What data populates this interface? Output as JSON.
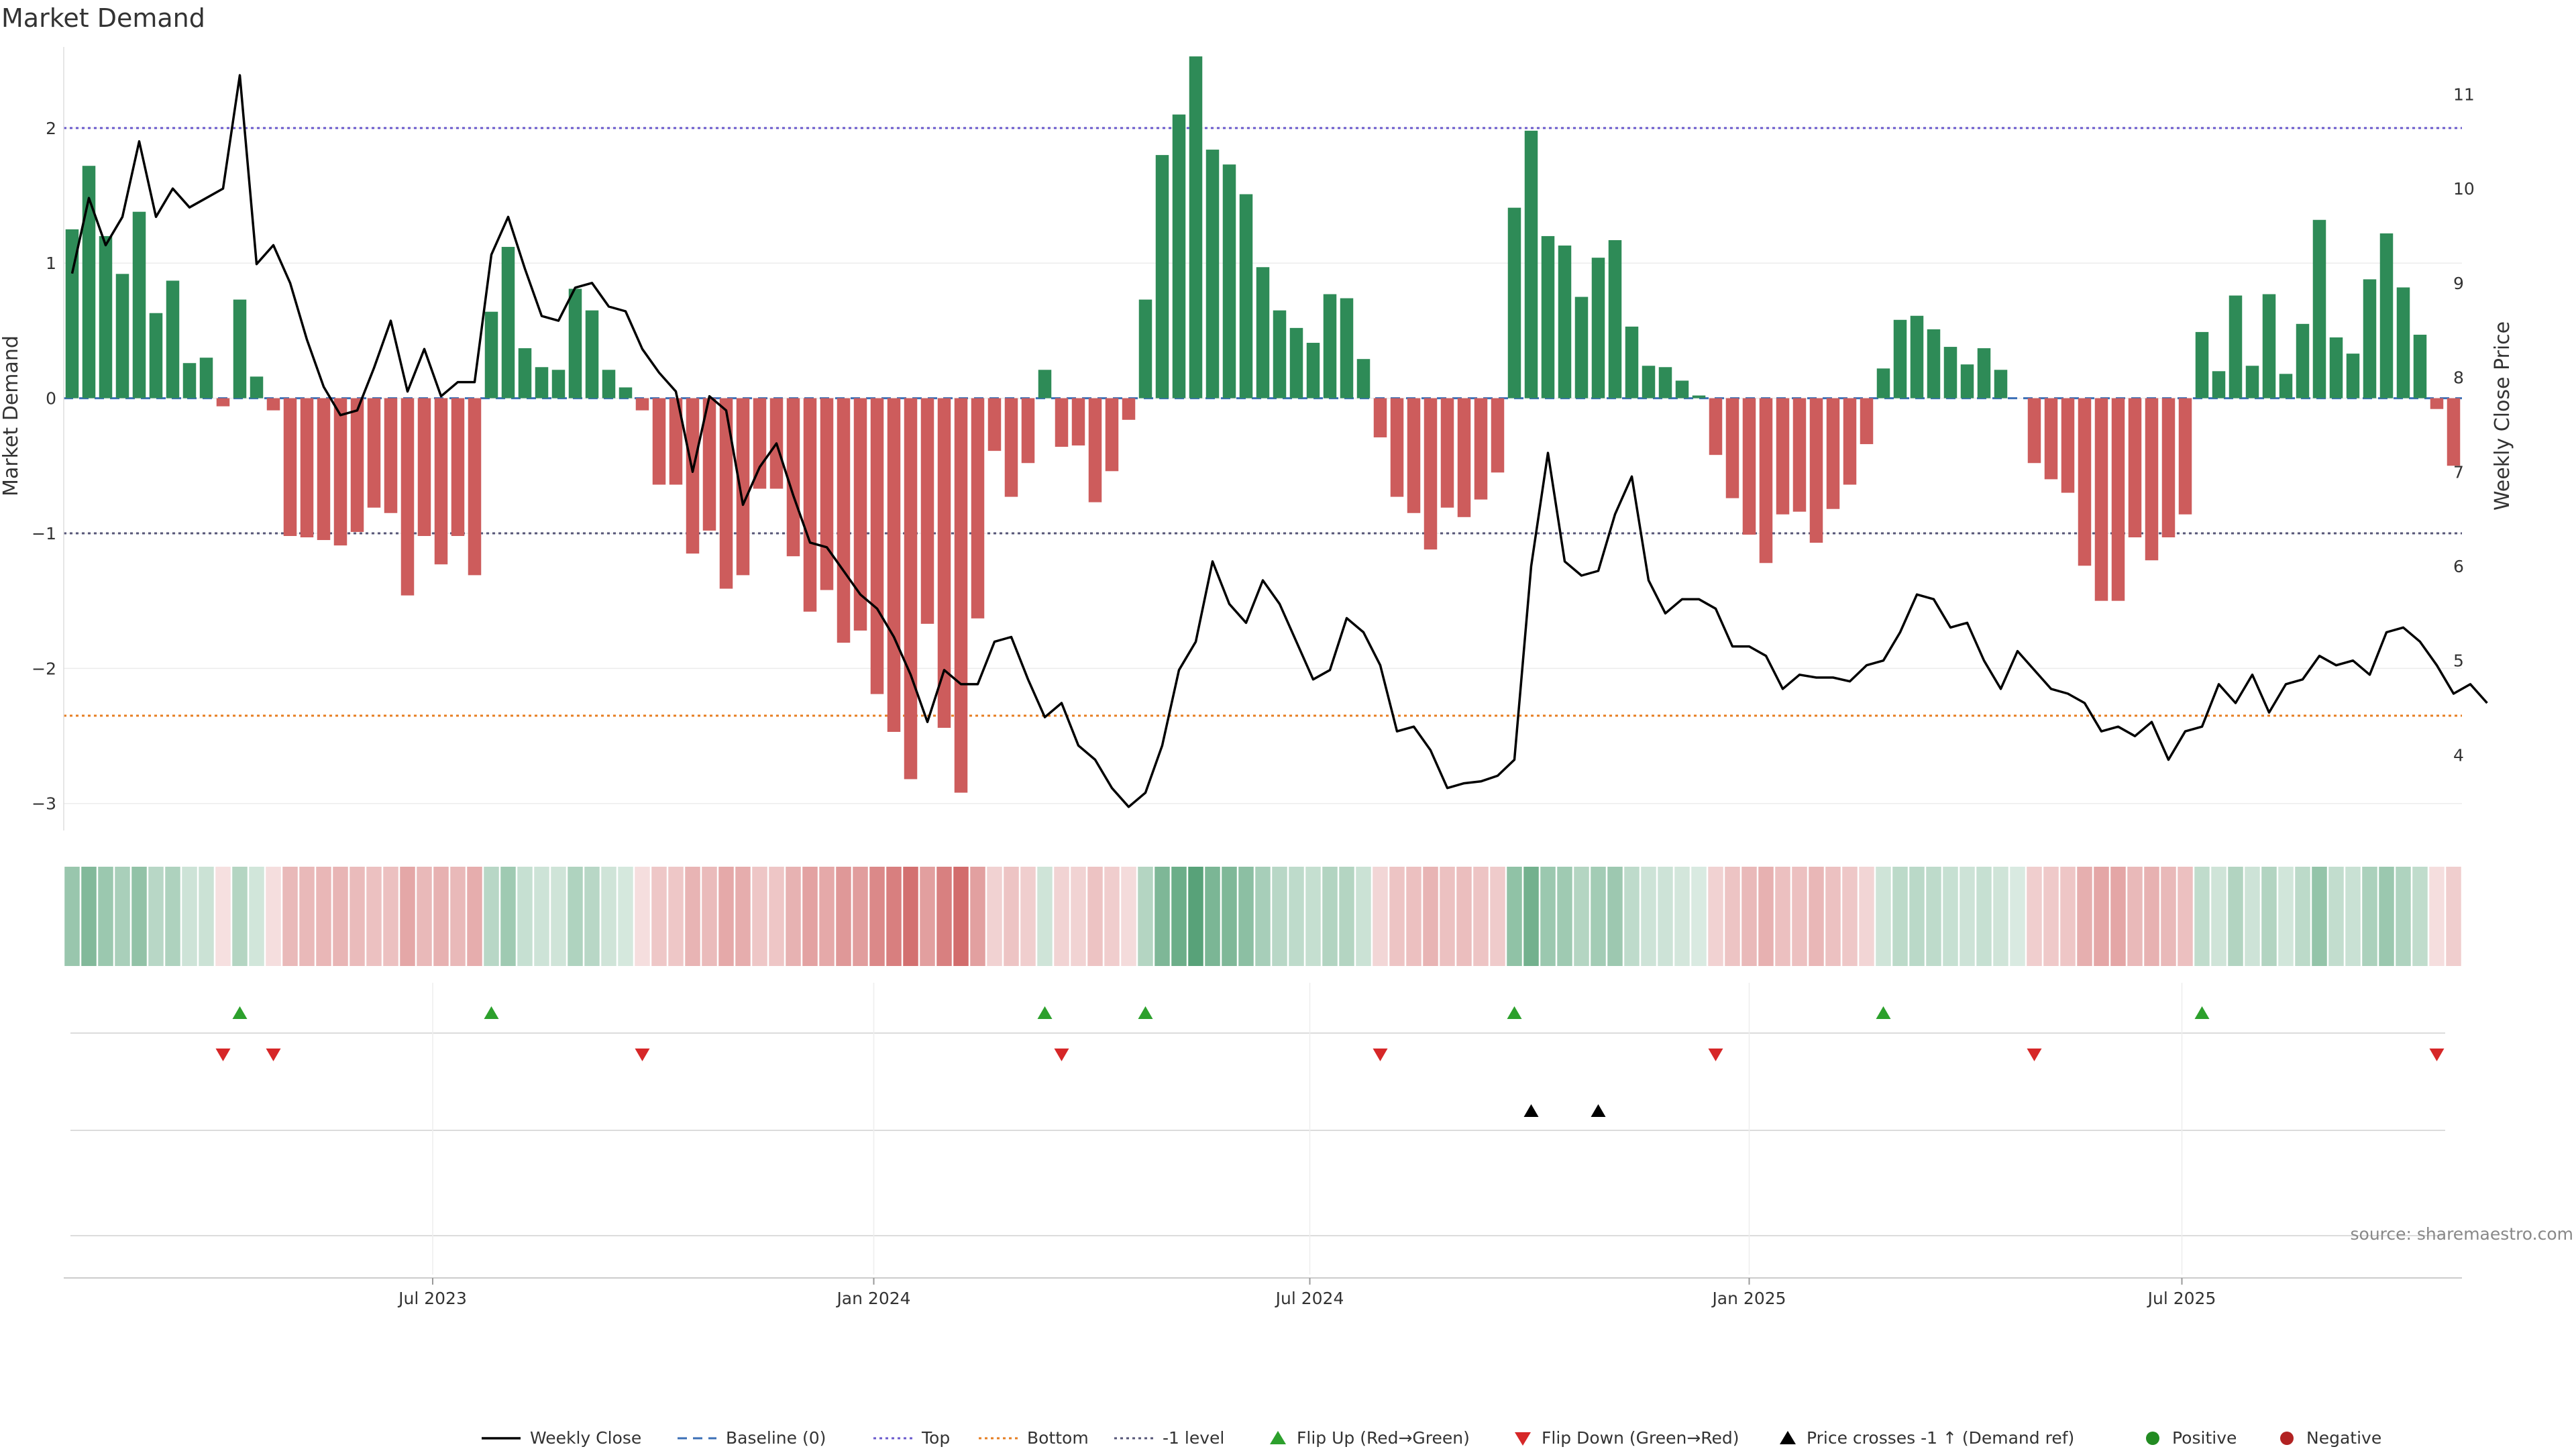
{
  "chart_data": {
    "type": "bar",
    "title": "Market Demand",
    "ylabel": "Market Demand",
    "y2label": "Weekly Close Price",
    "ylim": [
      -3.2,
      2.6
    ],
    "y2lim": [
      3.2,
      11.5
    ],
    "y_ticks": [
      2,
      1,
      0,
      -1,
      -2,
      -3
    ],
    "y_tick_labels": [
      "2",
      "1",
      "0",
      "−1",
      "−2",
      "−3"
    ],
    "y2_ticks": [
      11,
      10,
      9,
      8,
      7,
      6,
      5,
      4
    ],
    "y2_tick_labels": [
      "11",
      "10",
      "9",
      "8",
      "7",
      "6",
      "5",
      "4"
    ],
    "x_ticks": [
      {
        "label": "Jul 2023",
        "week": 22
      },
      {
        "label": "Jan 2024",
        "week": 48.3
      },
      {
        "label": "Jul 2024",
        "week": 74.3
      },
      {
        "label": "Jan 2025",
        "week": 100.5
      },
      {
        "label": "Jul 2025",
        "week": 126.3
      }
    ],
    "reference_lines": {
      "top": 2.0,
      "bottom": -2.35,
      "minus1": -1.0,
      "baseline": 0
    },
    "demand": [
      1.25,
      1.72,
      1.2,
      0.92,
      1.38,
      0.63,
      0.87,
      0.26,
      0.3,
      -0.06,
      0.73,
      0.16,
      -0.09,
      -1.02,
      -1.03,
      -1.05,
      -1.09,
      -0.99,
      -0.81,
      -0.85,
      -1.46,
      -1.02,
      -1.23,
      -1.02,
      -1.31,
      0.64,
      1.12,
      0.37,
      0.23,
      0.21,
      0.81,
      0.65,
      0.21,
      0.08,
      -0.09,
      -0.64,
      -0.64,
      -1.15,
      -0.98,
      -1.41,
      -1.31,
      -0.67,
      -0.67,
      -1.17,
      -1.58,
      -1.42,
      -1.81,
      -1.72,
      -2.19,
      -2.47,
      -2.82,
      -1.67,
      -2.44,
      -2.92,
      -1.63,
      -0.39,
      -0.73,
      -0.48,
      0.21,
      -0.36,
      -0.35,
      -0.77,
      -0.54,
      -0.16,
      0.73,
      1.8,
      2.1,
      2.53,
      1.84,
      1.73,
      1.51,
      0.97,
      0.65,
      0.52,
      0.41,
      0.77,
      0.74,
      0.29,
      -0.29,
      -0.73,
      -0.85,
      -1.12,
      -0.81,
      -0.88,
      -0.75,
      -0.55,
      1.41,
      1.98,
      1.2,
      1.13,
      0.75,
      1.04,
      1.17,
      0.53,
      0.24,
      0.23,
      0.13,
      0.02,
      -0.42,
      -0.74,
      -1.01,
      -1.22,
      -0.86,
      -0.84,
      -1.07,
      -0.82,
      -0.64,
      -0.34,
      0.22,
      0.58,
      0.61,
      0.51,
      0.38,
      0.25,
      0.37,
      0.21,
      0.0,
      -0.48,
      -0.6,
      -0.7,
      -1.24,
      -1.5,
      -1.5,
      -1.03,
      -1.2,
      -1.03,
      -0.86,
      0.49,
      0.2,
      0.76,
      0.24,
      0.77,
      0.18,
      0.55,
      1.32,
      0.45,
      0.33,
      0.88,
      1.22,
      0.82,
      0.47,
      -0.08,
      -0.5
    ],
    "price": [
      9.1,
      9.9,
      9.4,
      9.7,
      10.5,
      9.7,
      10.0,
      9.8,
      9.9,
      10.0,
      11.2,
      9.2,
      9.4,
      9.0,
      8.4,
      7.9,
      7.6,
      7.65,
      8.1,
      8.6,
      7.85,
      8.3,
      7.8,
      7.95,
      7.95,
      9.3,
      9.7,
      9.15,
      8.65,
      8.6,
      8.95,
      9.0,
      8.75,
      8.7,
      8.3,
      8.05,
      7.85,
      7.0,
      7.8,
      7.65,
      6.65,
      7.05,
      7.3,
      6.75,
      6.25,
      6.2,
      5.95,
      5.7,
      5.55,
      5.25,
      4.85,
      4.35,
      4.9,
      4.75,
      4.75,
      5.2,
      5.25,
      4.8,
      4.4,
      4.55,
      4.1,
      3.95,
      3.65,
      3.45,
      3.6,
      4.1,
      4.9,
      5.2,
      6.05,
      5.6,
      5.4,
      5.85,
      5.6,
      5.2,
      4.8,
      4.9,
      5.45,
      5.3,
      4.95,
      4.25,
      4.3,
      4.05,
      3.65,
      3.7,
      3.72,
      3.78,
      3.95,
      6.0,
      7.2,
      6.05,
      5.9,
      5.95,
      6.55,
      6.95,
      5.85,
      5.5,
      5.65,
      5.65,
      5.55,
      5.15,
      5.15,
      5.05,
      4.7,
      4.85,
      4.82,
      4.82,
      4.78,
      4.95,
      5.0,
      5.3,
      5.7,
      5.65,
      5.35,
      5.4,
      5.0,
      4.7,
      5.1,
      4.9,
      4.7,
      4.65,
      4.55,
      4.25,
      4.3,
      4.2,
      4.35,
      3.95,
      4.25,
      4.3,
      4.75,
      4.55,
      4.85,
      4.45,
      4.75,
      4.8,
      5.05,
      4.95,
      5.0,
      4.85,
      5.3,
      5.35,
      5.2,
      4.95,
      4.65,
      4.75,
      4.55
    ],
    "flip_up_weeks": [
      10,
      25,
      58,
      64,
      86,
      108,
      127
    ],
    "flip_down_weeks": [
      9,
      12,
      34,
      59,
      78,
      98,
      117,
      141
    ],
    "price_cross_weeks": [
      87,
      91
    ]
  },
  "legend": [
    {
      "label": "Weekly Close",
      "marker": "solid-line",
      "color": "#000000"
    },
    {
      "label": "Baseline (0)",
      "marker": "dashed-line",
      "color": "#3b6fb6"
    },
    {
      "label": "Top",
      "marker": "dotted-line",
      "color": "#6a5acd"
    },
    {
      "label": "Bottom",
      "marker": "dotted-line",
      "color": "#e67e22"
    },
    {
      "label": "-1 level",
      "marker": "dotted-line",
      "color": "#555577"
    },
    {
      "label": "Flip Up (Red→Green)",
      "marker": "triangle-up",
      "color": "#2ca02c"
    },
    {
      "label": "Flip Down (Green→Red)",
      "marker": "triangle-down",
      "color": "#d62728"
    },
    {
      "label": "Price crosses -1 ↑ (Demand ref)",
      "marker": "triangle-up",
      "color": "#000000"
    },
    {
      "label": "Positive",
      "marker": "circle",
      "color": "#228b22"
    },
    {
      "label": "Negative",
      "marker": "circle",
      "color": "#b22222"
    }
  ],
  "source": "source: sharemaestro.com",
  "colors": {
    "positive": "#2e8b57",
    "negative": "#cd5c5c",
    "flip_up": "#2ca02c",
    "flip_down": "#d62728",
    "price": "#000000",
    "top_line": "#6a5acd",
    "bottom_line": "#e67e22",
    "minus1_line": "#555577",
    "baseline": "#3b6fb6"
  }
}
